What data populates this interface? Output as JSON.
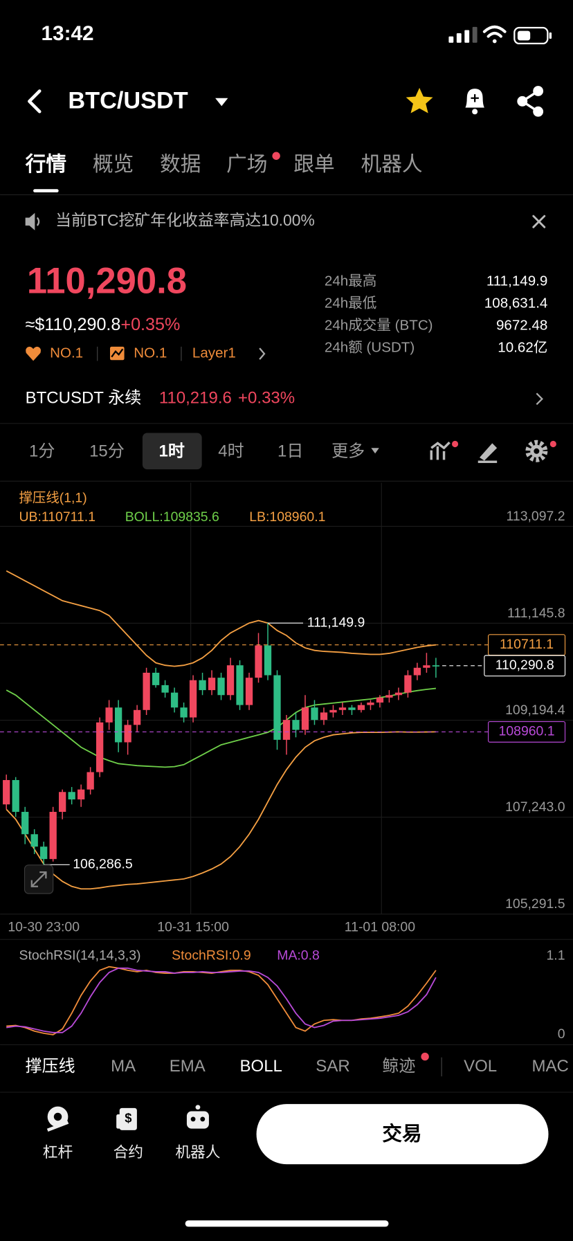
{
  "status_bar": {
    "time": "13:42"
  },
  "header": {
    "pair": "BTC/USDT"
  },
  "tabs": [
    "行情",
    "概览",
    "数据",
    "广场",
    "跟单",
    "机器人"
  ],
  "notice": "当前BTC挖矿年化收益率高达10.00%",
  "ticker": {
    "price": "110,290.8",
    "usd_price": "≈$110,290.8",
    "change": "+0.35%",
    "tags": [
      "NO.1",
      "NO.1",
      "Layer1"
    ],
    "stats": [
      {
        "label": "24h最高",
        "value": "111,149.9"
      },
      {
        "label": "24h最低",
        "value": "108,631.4"
      },
      {
        "label": "24h成交量 (BTC)",
        "value": "9672.48"
      },
      {
        "label": "24h额 (USDT)",
        "value": "10.62亿"
      }
    ]
  },
  "perpetual": {
    "name": "BTCUSDT 永续",
    "price": "110,219.6",
    "change": "+0.33%"
  },
  "intervals": [
    "1分",
    "15分",
    "1时",
    "4时",
    "1日",
    "更多"
  ],
  "chart": {
    "type": "candlestick",
    "indicator": "撑压线(1,1)",
    "up_color": "#f0475e",
    "down_color": "#2ebd85",
    "ylim": [
      105291.5,
      113973
    ],
    "yticks": [
      {
        "value": 113097.2,
        "label": "113,097.2"
      },
      {
        "value": 111145.8,
        "label": "111,145.8"
      },
      {
        "value": 109194.4,
        "label": "109,194.4"
      },
      {
        "value": 107243.0,
        "label": "107,243.0"
      },
      {
        "value": 105291.5,
        "label": "105,291.5"
      }
    ],
    "categories": [
      null,
      null,
      null,
      null,
      "10-30 23:00",
      null,
      null,
      null,
      null,
      null,
      null,
      null,
      null,
      null,
      null,
      null,
      null,
      null,
      null,
      null,
      "10-31 15:00",
      null,
      null,
      null,
      null,
      null,
      null,
      null,
      null,
      null,
      null,
      null,
      null,
      null,
      null,
      null,
      null,
      null,
      null,
      null,
      "11-01 08:00",
      null,
      null,
      null,
      null,
      null,
      null
    ],
    "open": [
      107500,
      107990,
      107350,
      106900,
      106650,
      106400,
      107350,
      107750,
      107600,
      107800,
      108150,
      109150,
      109450,
      108750,
      109100,
      109400,
      110150,
      109900,
      109750,
      109450,
      109250,
      110000,
      109800,
      110050,
      109700,
      110300,
      109500,
      110050,
      110700,
      110100,
      108800,
      109200,
      109000,
      109450,
      109200,
      109350,
      109400,
      109450,
      109400,
      109500,
      109550,
      109650,
      109700,
      109750,
      110100,
      110250,
      110300
    ],
    "high": [
      108100,
      108050,
      107450,
      107000,
      106750,
      107450,
      107800,
      107850,
      107900,
      108250,
      109250,
      109600,
      109600,
      109200,
      109500,
      110250,
      110250,
      110000,
      109850,
      109550,
      110100,
      110150,
      110200,
      110150,
      110450,
      110400,
      110150,
      110950,
      111149.9,
      110200,
      109300,
      109350,
      109700,
      109600,
      109450,
      109500,
      109550,
      109500,
      109550,
      109600,
      109700,
      109800,
      109850,
      110200,
      110350,
      110550,
      110450
    ],
    "low": [
      107400,
      107250,
      106700,
      106500,
      106286.5,
      106350,
      107200,
      107500,
      107450,
      107700,
      108050,
      109000,
      108550,
      108500,
      108950,
      109300,
      109850,
      109650,
      109350,
      109150,
      109150,
      109700,
      109700,
      109600,
      109600,
      109400,
      109400,
      109950,
      110000,
      108600,
      108500,
      108850,
      108900,
      109100,
      109100,
      109250,
      109300,
      109300,
      109350,
      109400,
      109450,
      109550,
      109600,
      109650,
      110000,
      110150,
      110050
    ],
    "close": [
      107990,
      107350,
      106900,
      106650,
      106400,
      107350,
      107750,
      107600,
      107800,
      108150,
      109150,
      109450,
      108750,
      109100,
      109400,
      110150,
      109900,
      109750,
      109450,
      109250,
      110000,
      109800,
      110050,
      109700,
      110300,
      109500,
      110050,
      110700,
      110100,
      108800,
      109200,
      109000,
      109450,
      109200,
      109350,
      109400,
      109450,
      109400,
      109500,
      109550,
      109650,
      109700,
      109750,
      110100,
      110250,
      110300,
      110290.8
    ],
    "bands": [
      {
        "name": "UB:110711.1",
        "color": "#f5a043",
        "values": [
          112200,
          112100,
          112000,
          111900,
          111800,
          111700,
          111600,
          111550,
          111500,
          111450,
          111400,
          111300,
          111100,
          110900,
          110700,
          110500,
          110350,
          110300,
          110280,
          110300,
          110350,
          110450,
          110600,
          110800,
          110950,
          111050,
          111150,
          111200,
          111150,
          111000,
          110900,
          110750,
          110650,
          110600,
          110580,
          110570,
          110560,
          110540,
          110530,
          110520,
          110520,
          110540,
          110580,
          110620,
          110660,
          110690,
          110711.1
        ]
      },
      {
        "name": "BOLL:109835.6",
        "color": "#6fd04a",
        "values": [
          109800,
          109700,
          109550,
          109400,
          109250,
          109100,
          108950,
          108800,
          108650,
          108550,
          108450,
          108380,
          108320,
          108300,
          108280,
          108270,
          108260,
          108250,
          108260,
          108300,
          108400,
          108500,
          108600,
          108700,
          108750,
          108800,
          108850,
          108900,
          108950,
          109050,
          109200,
          109350,
          109450,
          109500,
          109520,
          109540,
          109560,
          109580,
          109600,
          109620,
          109650,
          109680,
          109720,
          109760,
          109790,
          109815,
          109835.6
        ]
      },
      {
        "name": "LB:108960.1",
        "color": "#f5a043",
        "values": [
          107400,
          107200,
          106900,
          106600,
          106300,
          106100,
          105950,
          105850,
          105800,
          105800,
          105820,
          105850,
          105870,
          105890,
          105900,
          105920,
          105940,
          105960,
          105980,
          106000,
          106050,
          106120,
          106200,
          106300,
          106450,
          106650,
          106900,
          107200,
          107550,
          107900,
          108200,
          108450,
          108650,
          108780,
          108850,
          108900,
          108920,
          108940,
          108950,
          108950,
          108950,
          108955,
          108960,
          108955,
          108955,
          108958,
          108960.1
        ]
      }
    ],
    "high_label": "111,149.9",
    "low_label": "106,286.5",
    "ub_tag": "110711.1",
    "price_tag": "110,290.8",
    "lb_tag": "108960.1"
  },
  "stoch_rsi": {
    "type": "line",
    "title": "StochRSI(14,14,3,3)",
    "ylim": [
      -0.14,
      1.32
    ],
    "yticks": [
      1.1,
      0
    ],
    "series": [
      {
        "name": "StochRSI:0.9",
        "color": "#f08c3a",
        "values": [
          0.12,
          0.13,
          0.1,
          0.05,
          0.02,
          0.0,
          0.08,
          0.3,
          0.55,
          0.75,
          0.9,
          0.95,
          0.93,
          0.9,
          0.88,
          0.9,
          0.87,
          0.86,
          0.86,
          0.88,
          0.88,
          0.87,
          0.86,
          0.88,
          0.9,
          0.9,
          0.88,
          0.83,
          0.7,
          0.5,
          0.3,
          0.1,
          0.05,
          0.15,
          0.2,
          0.21,
          0.2,
          0.2,
          0.22,
          0.23,
          0.25,
          0.27,
          0.3,
          0.4,
          0.55,
          0.72,
          0.9
        ]
      },
      {
        "name": "MA:0.8",
        "color": "#b84ad8",
        "values": [
          0.1,
          0.12,
          0.11,
          0.08,
          0.05,
          0.03,
          0.03,
          0.12,
          0.3,
          0.53,
          0.73,
          0.87,
          0.93,
          0.93,
          0.9,
          0.89,
          0.88,
          0.88,
          0.86,
          0.87,
          0.87,
          0.88,
          0.87,
          0.87,
          0.88,
          0.89,
          0.89,
          0.87,
          0.8,
          0.68,
          0.5,
          0.3,
          0.15,
          0.1,
          0.13,
          0.19,
          0.2,
          0.2,
          0.21,
          0.22,
          0.23,
          0.25,
          0.27,
          0.32,
          0.42,
          0.56,
          0.8
        ]
      }
    ]
  },
  "indicators": [
    "撑压线",
    "MA",
    "EMA",
    "BOLL",
    "SAR",
    "鲸迹",
    "VOL",
    "MAC"
  ],
  "bottom_nav": [
    "杠杆",
    "合约",
    "机器人"
  ],
  "trade_button": "交易"
}
